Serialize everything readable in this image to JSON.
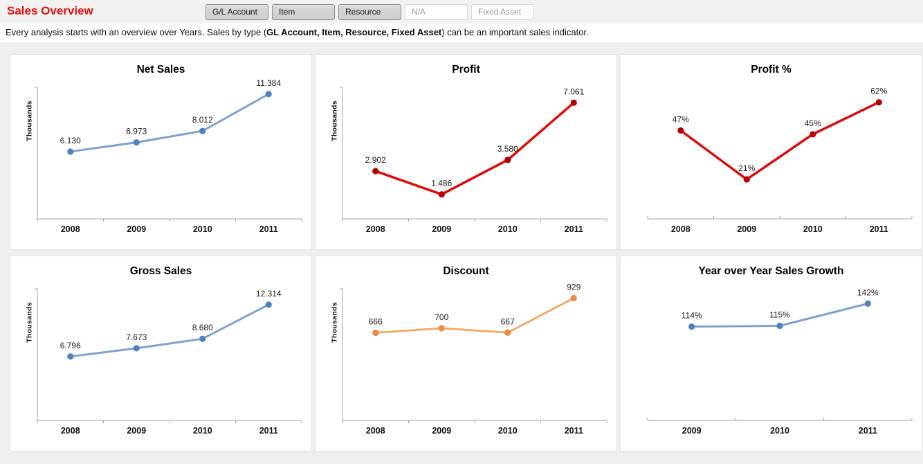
{
  "header": {
    "title": "Sales Overview",
    "title_color": "#e01414",
    "buttons": [
      {
        "label": "G/L Account",
        "enabled": true
      },
      {
        "label": "Item",
        "enabled": true
      },
      {
        "label": "Resource",
        "enabled": true
      },
      {
        "label": "N/A",
        "enabled": false
      },
      {
        "label": "Fixed Asset",
        "enabled": false
      }
    ]
  },
  "description": {
    "prefix": "Every analysis starts with an overview over Years. Sales by type (",
    "bold": "GL Account, Item, Resource, Fixed Asset",
    "suffix": ") can be an important sales indicator."
  },
  "chart_data": [
    {
      "type": "line",
      "title": "Net Sales",
      "ylabel": "Thousands",
      "categories": [
        "2008",
        "2009",
        "2010",
        "2011"
      ],
      "values": [
        6130,
        6973,
        8012,
        11384
      ],
      "labels": [
        "6.130",
        "6.973",
        "8.012",
        "11.384"
      ],
      "ylim": [
        0,
        12000
      ],
      "y_axis_visible": true,
      "grid": false,
      "legend": "none",
      "line_color": "#7EA1D3",
      "marker_color": "#4F81BD",
      "line_width": 3
    },
    {
      "type": "line",
      "title": "Profit",
      "ylabel": "Thousands",
      "categories": [
        "2008",
        "2009",
        "2010",
        "2011"
      ],
      "values": [
        2902,
        1486,
        3580,
        7061
      ],
      "labels": [
        "2.902",
        "1.486",
        "3.580",
        "7.061"
      ],
      "ylim": [
        0,
        8000
      ],
      "y_axis_visible": true,
      "grid": false,
      "legend": "none",
      "line_color": "#DE0A0A",
      "marker_color": "#B40000",
      "line_width": 3.5
    },
    {
      "type": "line",
      "title": "Profit %",
      "ylabel": "",
      "categories": [
        "2008",
        "2009",
        "2010",
        "2011"
      ],
      "values": [
        47,
        21,
        45,
        62
      ],
      "labels": [
        "47%",
        "21%",
        "45%",
        "62%"
      ],
      "ylim": [
        0,
        70
      ],
      "y_axis_visible": false,
      "grid": false,
      "legend": "none",
      "line_color": "#DE0A0A",
      "marker_color": "#B40000",
      "line_width": 3.5
    },
    {
      "type": "line",
      "title": "Gross Sales",
      "ylabel": "Thousands",
      "categories": [
        "2008",
        "2009",
        "2010",
        "2011"
      ],
      "values": [
        6796,
        7673,
        8680,
        12314
      ],
      "labels": [
        "6.796",
        "7.673",
        "8.680",
        "12.314"
      ],
      "ylim": [
        0,
        14000
      ],
      "y_axis_visible": true,
      "grid": false,
      "legend": "none",
      "line_color": "#7EA1D3",
      "marker_color": "#4F81BD",
      "line_width": 3
    },
    {
      "type": "line",
      "title": "Discount",
      "ylabel": "Thousands",
      "categories": [
        "2008",
        "2009",
        "2010",
        "2011"
      ],
      "values": [
        666,
        700,
        667,
        929
      ],
      "labels": [
        "666",
        "700",
        "667",
        "929"
      ],
      "ylim": [
        0,
        1000
      ],
      "y_axis_visible": true,
      "grid": false,
      "legend": "none",
      "line_color": "#F6A55F",
      "marker_color": "#ED8C3C",
      "line_width": 2.75
    },
    {
      "type": "line",
      "title": "Year over Year Sales Growth",
      "ylabel": "",
      "categories": [
        "2009",
        "2010",
        "2011"
      ],
      "values": [
        114,
        115,
        142
      ],
      "labels": [
        "114%",
        "115%",
        "142%"
      ],
      "ylim": [
        0,
        160
      ],
      "y_axis_visible": false,
      "grid": false,
      "legend": "none",
      "line_color": "#7EA1D3",
      "marker_color": "#4F81BD",
      "line_width": 3
    }
  ]
}
